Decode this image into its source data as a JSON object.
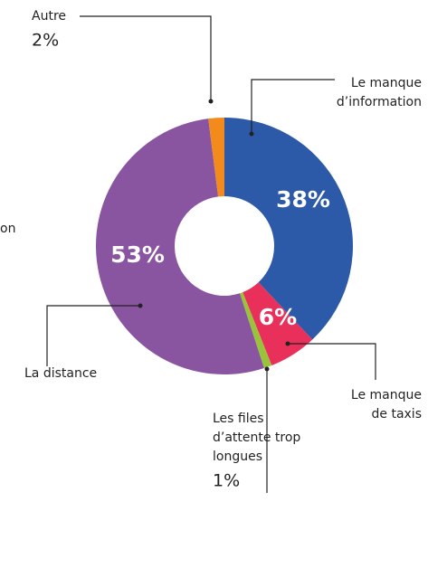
{
  "chart_data": {
    "type": "donut",
    "categories": [
      [
        "Le manque",
        "d’information"
      ],
      [
        "Le manque",
        "de taxis"
      ],
      [
        "Les files",
        "d’attente trop",
        "longues"
      ],
      [
        "La distance"
      ],
      [
        "Autre"
      ]
    ],
    "values": [
      38,
      6,
      1,
      53,
      2
    ],
    "value_labels": [
      "38%",
      "6%",
      "1%",
      "53%",
      "2%"
    ],
    "colors": [
      "#2d5aa8",
      "#e8305a",
      "#9ac33c",
      "#8a55a0",
      "#f28a1c"
    ],
    "annotations": [
      "on"
    ]
  }
}
